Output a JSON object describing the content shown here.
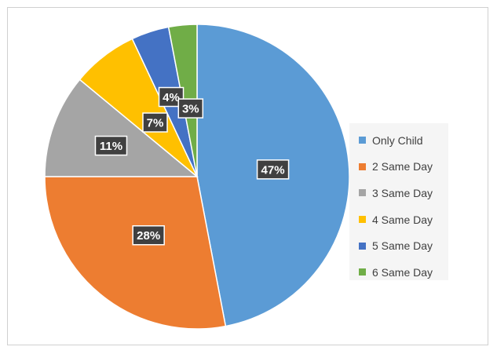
{
  "chart_data": {
    "type": "pie",
    "categories": [
      "Only Child",
      "2 Same Day",
      "3 Same Day",
      "4 Same Day",
      "5 Same Day",
      "6 Same Day"
    ],
    "values": [
      47,
      28,
      11,
      7,
      4,
      3
    ],
    "labels": [
      "47%",
      "28%",
      "11%",
      "7%",
      "4%",
      "3%"
    ],
    "colors": [
      "#5b9bd5",
      "#ed7d31",
      "#a5a5a5",
      "#ffc000",
      "#4472c4",
      "#70ad47"
    ],
    "title": "",
    "legend_position": "right"
  }
}
